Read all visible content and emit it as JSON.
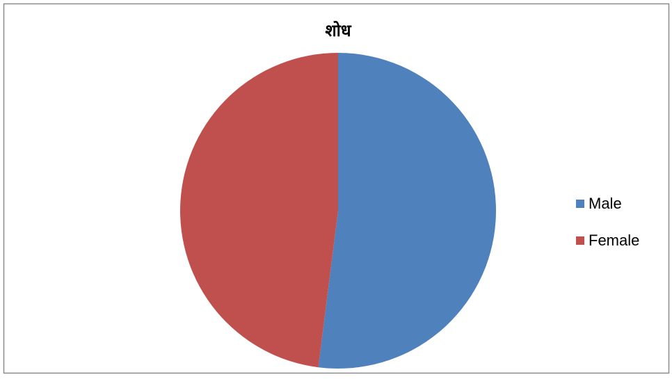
{
  "chart_data": {
    "type": "pie",
    "title": "शोध",
    "categories": [
      "Male",
      "Female"
    ],
    "values": [
      52,
      48
    ],
    "colors": [
      "#4f81bd",
      "#c0504d"
    ],
    "legend": "right"
  }
}
